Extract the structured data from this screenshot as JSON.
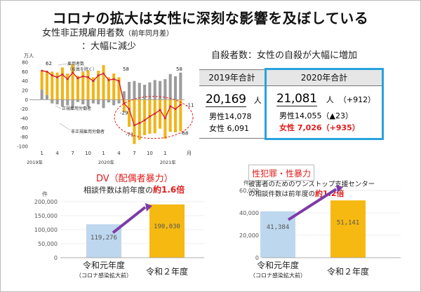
{
  "title": "コロナの拡大は女性に深刻な影響を及ぼしている",
  "employment_chart": {
    "title_main": "女性非正規雇用者数",
    "title_note": "（前年同月差）",
    "subtitle": "：大幅に減少",
    "unit": "万人",
    "yticks": [
      "80",
      "60",
      "40",
      "20",
      "0",
      "-20",
      "-40",
      "-60",
      "-80",
      "-100"
    ],
    "xticks": [
      "1",
      "4",
      "7",
      "10",
      "1",
      "4",
      "7",
      "10",
      "1"
    ],
    "x_month_label": "月",
    "years": [
      "2019年",
      "2020年",
      "2021年"
    ],
    "legend_employed": "雇用者数",
    "legend_employed_note": "（役員を除く）",
    "legend_regular": "正規雇用労働者",
    "legend_nonregular": "非正規雇用労働者",
    "annotations": {
      "a62": "62",
      "a58a": "58",
      "a58b": "58",
      "a_m11": "-11",
      "a_m29": "-29",
      "a_m71": "-71",
      "a_m68": "-68"
    },
    "colors": {
      "nonregular": "#f2b418",
      "regular": "#9c9c9c",
      "line": "#d6202e",
      "circle": "#e01b1b"
    }
  },
  "suicide": {
    "title": "自殺者数：女性の自殺が大幅に増加",
    "y2019": {
      "header": "2019年合計",
      "total": "20,169",
      "unit": "人",
      "male": "男性14,078",
      "female": "女性 6,091"
    },
    "y2020": {
      "header": "2020年合計",
      "total": "21,081",
      "unit": "人",
      "total_diff": "（+912）",
      "male": "男性14,055（▲23）",
      "female": "女性 7,026（+935）"
    }
  },
  "dv": {
    "title": "DV（配偶者暴力）",
    "subtitle_pre": "相談件数は前年度の",
    "subtitle_em": "約1.6倍",
    "unit": "件",
    "yticks": [
      "200,000",
      "150,000",
      "100,000",
      "50,000",
      "0"
    ],
    "categories": [
      "令和元年度",
      "令和２年度"
    ],
    "category_note": "（コロナ感染拡大前）",
    "values": [
      119276,
      190030
    ],
    "value_labels": [
      "119,276",
      "190,030"
    ],
    "colors": [
      "#bdd7ee",
      "#f6b912"
    ]
  },
  "sexual": {
    "title": "性犯罪・性暴力",
    "desc": "被害者のためのワンストップ支援センター",
    "subtitle_pre": "の相談件数は前年度の",
    "subtitle_em": "約1.2倍",
    "unit": "件",
    "yticks": [
      "60,000",
      "40,000",
      "20,000",
      "0"
    ],
    "categories": [
      "令和元年度",
      "令和２年度"
    ],
    "category_note": "（コロナ感染拡大前）",
    "values": [
      41384,
      51141
    ],
    "value_labels": [
      "41,384",
      "51,141"
    ],
    "colors": [
      "#bdd7ee",
      "#f6b912"
    ]
  },
  "chart_data": [
    {
      "type": "bar",
      "title": "女性非正規雇用者数（前年同月差）",
      "ylabel": "万人",
      "ylim": [
        -100,
        80
      ],
      "series": [
        {
          "name": "雇用者数（役員を除く）",
          "values": [
            62,
            60,
            52,
            48,
            54,
            44,
            58,
            46,
            50,
            48,
            40,
            52,
            56,
            42,
            44,
            40,
            -8,
            -20,
            -55,
            -50,
            -44,
            -36,
            -30,
            -22,
            -40,
            -14,
            -20,
            -11
          ]
        },
        {
          "name": "正規雇用労働者",
          "values": [
            22,
            10,
            -8,
            -10,
            -15,
            -12,
            -18,
            -5,
            -10,
            -15,
            -8,
            -10,
            -18,
            -6,
            -12,
            -8,
            18,
            38,
            40,
            36,
            32,
            37,
            42,
            40,
            44,
            55,
            50,
            58
          ]
        },
        {
          "name": "非正規雇用労働者",
          "values": [
            40,
            50,
            60,
            58,
            69,
            56,
            76,
            51,
            60,
            63,
            48,
            62,
            74,
            48,
            56,
            48,
            -26,
            -58,
            -95,
            -86,
            -76,
            -73,
            -72,
            -62,
            -84,
            -69,
            -70,
            -68
          ]
        }
      ]
    },
    {
      "type": "bar",
      "title": "DV（配偶者暴力）",
      "ylabel": "件",
      "categories": [
        "令和元年度",
        "令和２年度"
      ],
      "values": [
        119276,
        190030
      ],
      "ylim": [
        0,
        200000
      ]
    },
    {
      "type": "bar",
      "title": "性犯罪・性暴力",
      "ylabel": "件",
      "categories": [
        "令和元年度",
        "令和２年度"
      ],
      "values": [
        41384,
        51141
      ],
      "ylim": [
        0,
        60000
      ]
    }
  ]
}
